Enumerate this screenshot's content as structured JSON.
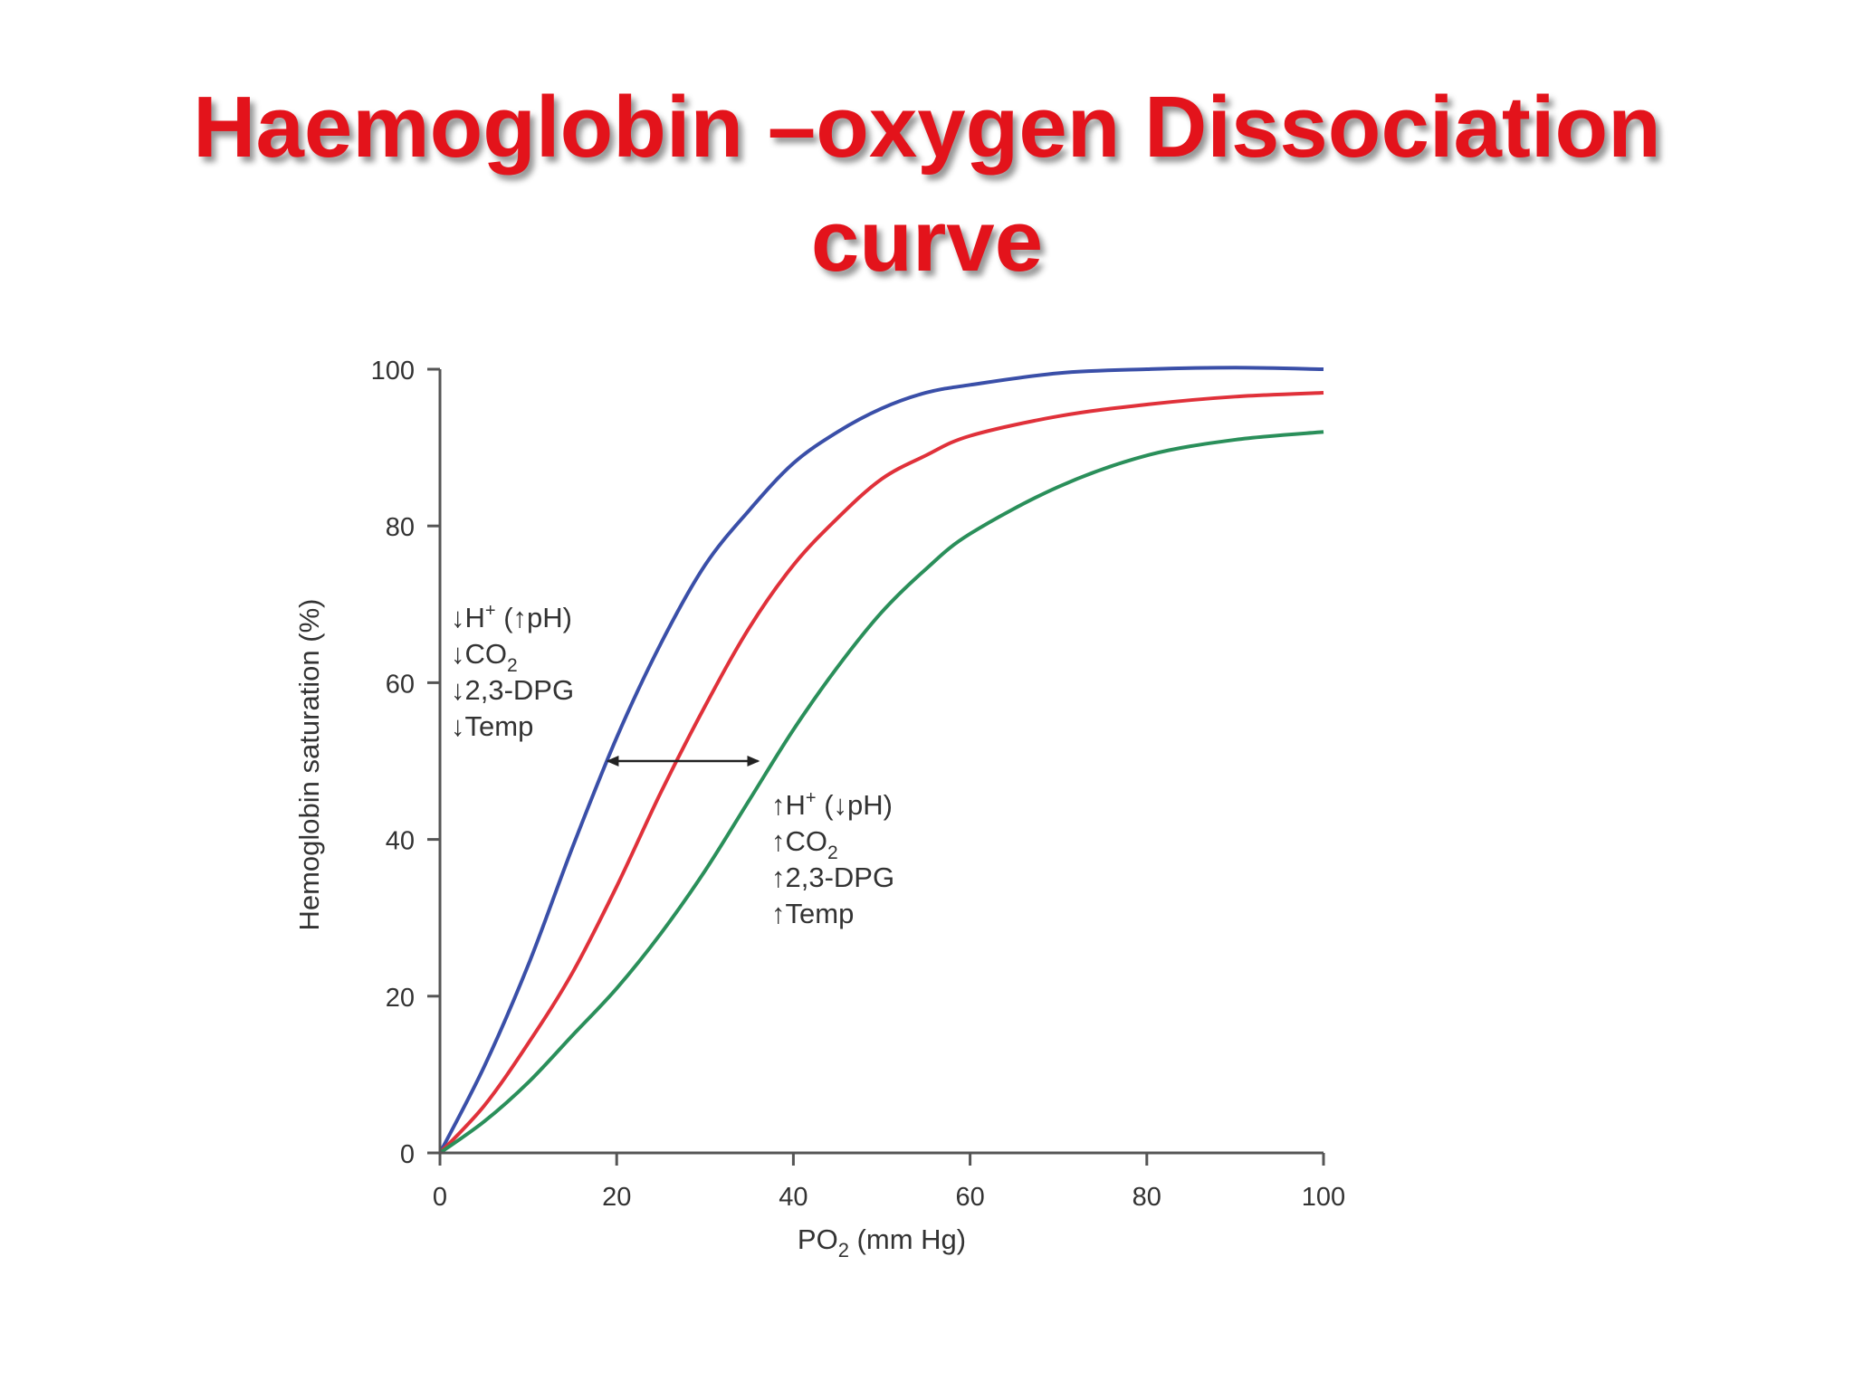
{
  "slide": {
    "title_line1": "Haemoglobin –oxygen Dissociation",
    "title_line2": "curve"
  },
  "chart_data": {
    "type": "line",
    "xlabel_main": "PO",
    "xlabel_sub": "2",
    "xlabel_rest": " (mm Hg)",
    "ylabel": "Hemoglobin saturation (%)",
    "xlim": [
      0,
      100
    ],
    "ylim": [
      0,
      100
    ],
    "x_ticks": [
      "0",
      "20",
      "40",
      "60",
      "80",
      "100"
    ],
    "y_ticks": [
      "0",
      "20",
      "40",
      "60",
      "80",
      "100"
    ],
    "grid": false,
    "series": [
      {
        "color": "#3a4fa8",
        "x": [
          0,
          5,
          10,
          15,
          20,
          25,
          30,
          35,
          40,
          45,
          50,
          55,
          60,
          70,
          80,
          90,
          100
        ],
        "y": [
          0,
          11,
          24,
          39,
          53,
          65,
          75,
          82,
          88,
          92,
          95,
          97,
          98,
          99.5,
          100,
          100.2,
          100
        ]
      },
      {
        "color": "#e0313a",
        "x": [
          0,
          5,
          10,
          15,
          20,
          25,
          30,
          35,
          40,
          45,
          50,
          55,
          60,
          70,
          80,
          90,
          100
        ],
        "y": [
          0,
          6,
          14,
          23,
          34,
          46,
          57,
          67,
          75,
          81,
          86,
          89,
          91.5,
          94,
          95.5,
          96.5,
          97
        ]
      },
      {
        "color": "#2a8f5a",
        "x": [
          0,
          5,
          10,
          15,
          20,
          25,
          30,
          35,
          40,
          45,
          50,
          55,
          60,
          70,
          80,
          90,
          100
        ],
        "y": [
          0,
          4,
          9,
          15,
          21,
          28,
          36,
          45,
          54,
          62,
          69,
          74.5,
          79,
          85,
          89,
          91,
          92
        ]
      }
    ],
    "annotations": {
      "left": [
        {
          "arrow": "↓",
          "text": "H",
          "sup": "+",
          "rest": " (↑pH)"
        },
        {
          "arrow": "↓",
          "text": "CO",
          "sub": "2",
          "rest": ""
        },
        {
          "arrow": "↓",
          "text": "2,3-DPG",
          "rest": ""
        },
        {
          "arrow": "↓",
          "text": "Temp",
          "rest": ""
        }
      ],
      "right": [
        {
          "arrow": "↑",
          "text": "H",
          "sup": "+",
          "rest": " (↓pH)"
        },
        {
          "arrow": "↑",
          "text": "CO",
          "sub": "2",
          "rest": ""
        },
        {
          "arrow": "↑",
          "text": "2,3-DPG",
          "rest": ""
        },
        {
          "arrow": "↑",
          "text": "Temp",
          "rest": ""
        }
      ],
      "double_arrow": {
        "y": 50,
        "x_from": 19,
        "x_to": 36
      }
    }
  }
}
